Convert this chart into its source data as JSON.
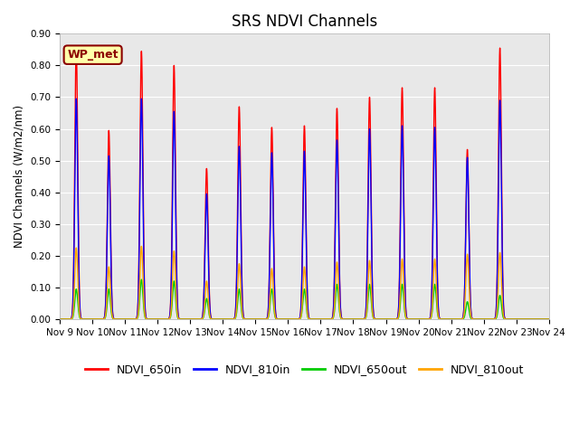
{
  "title": "SRS NDVI Channels",
  "ylabel": "NDVI Channels (W/m2/nm)",
  "ylim": [
    0.0,
    0.9
  ],
  "yticks": [
    0.0,
    0.1,
    0.2,
    0.3,
    0.4,
    0.5,
    0.6,
    0.7,
    0.8,
    0.9
  ],
  "xtick_labels": [
    "Nov 9",
    "Nov 10",
    "Nov 11",
    "Nov 12",
    "Nov 13",
    "Nov 14",
    "Nov 15",
    "Nov 16",
    "Nov 17",
    "Nov 18",
    "Nov 19",
    "Nov 20",
    "Nov 21",
    "Nov 22",
    "Nov 23",
    "Nov 24"
  ],
  "plot_bg": "#e8e8e8",
  "fig_bg": "#ffffff",
  "grid_color": "#ffffff",
  "line_colors": {
    "NDVI_650in": "#ff0000",
    "NDVI_810in": "#0000ff",
    "NDVI_650out": "#00cc00",
    "NDVI_810out": "#ffa500"
  },
  "wp_met_label": "WP_met",
  "wp_met_bg": "#ffffaa",
  "wp_met_border": "#8B0000",
  "wp_met_text": "#8B0000",
  "peaks_650in": [
    0.855,
    0.595,
    0.845,
    0.8,
    0.475,
    0.67,
    0.605,
    0.61,
    0.665,
    0.7,
    0.73,
    0.73,
    0.535,
    0.855
  ],
  "peaks_810in": [
    0.695,
    0.515,
    0.695,
    0.655,
    0.395,
    0.545,
    0.525,
    0.53,
    0.565,
    0.6,
    0.61,
    0.605,
    0.51,
    0.69
  ],
  "peaks_650out": [
    0.095,
    0.095,
    0.125,
    0.12,
    0.065,
    0.095,
    0.095,
    0.095,
    0.11,
    0.11,
    0.11,
    0.11,
    0.055,
    0.075
  ],
  "peaks_810out": [
    0.225,
    0.165,
    0.23,
    0.215,
    0.12,
    0.175,
    0.16,
    0.165,
    0.18,
    0.185,
    0.19,
    0.19,
    0.205,
    0.21
  ],
  "n_days": 15,
  "pts_per_day": 300,
  "sigma": 0.045,
  "title_fontsize": 12,
  "axis_fontsize": 8.5,
  "tick_fontsize": 7.5,
  "legend_fontsize": 9,
  "linewidth": 1.0
}
